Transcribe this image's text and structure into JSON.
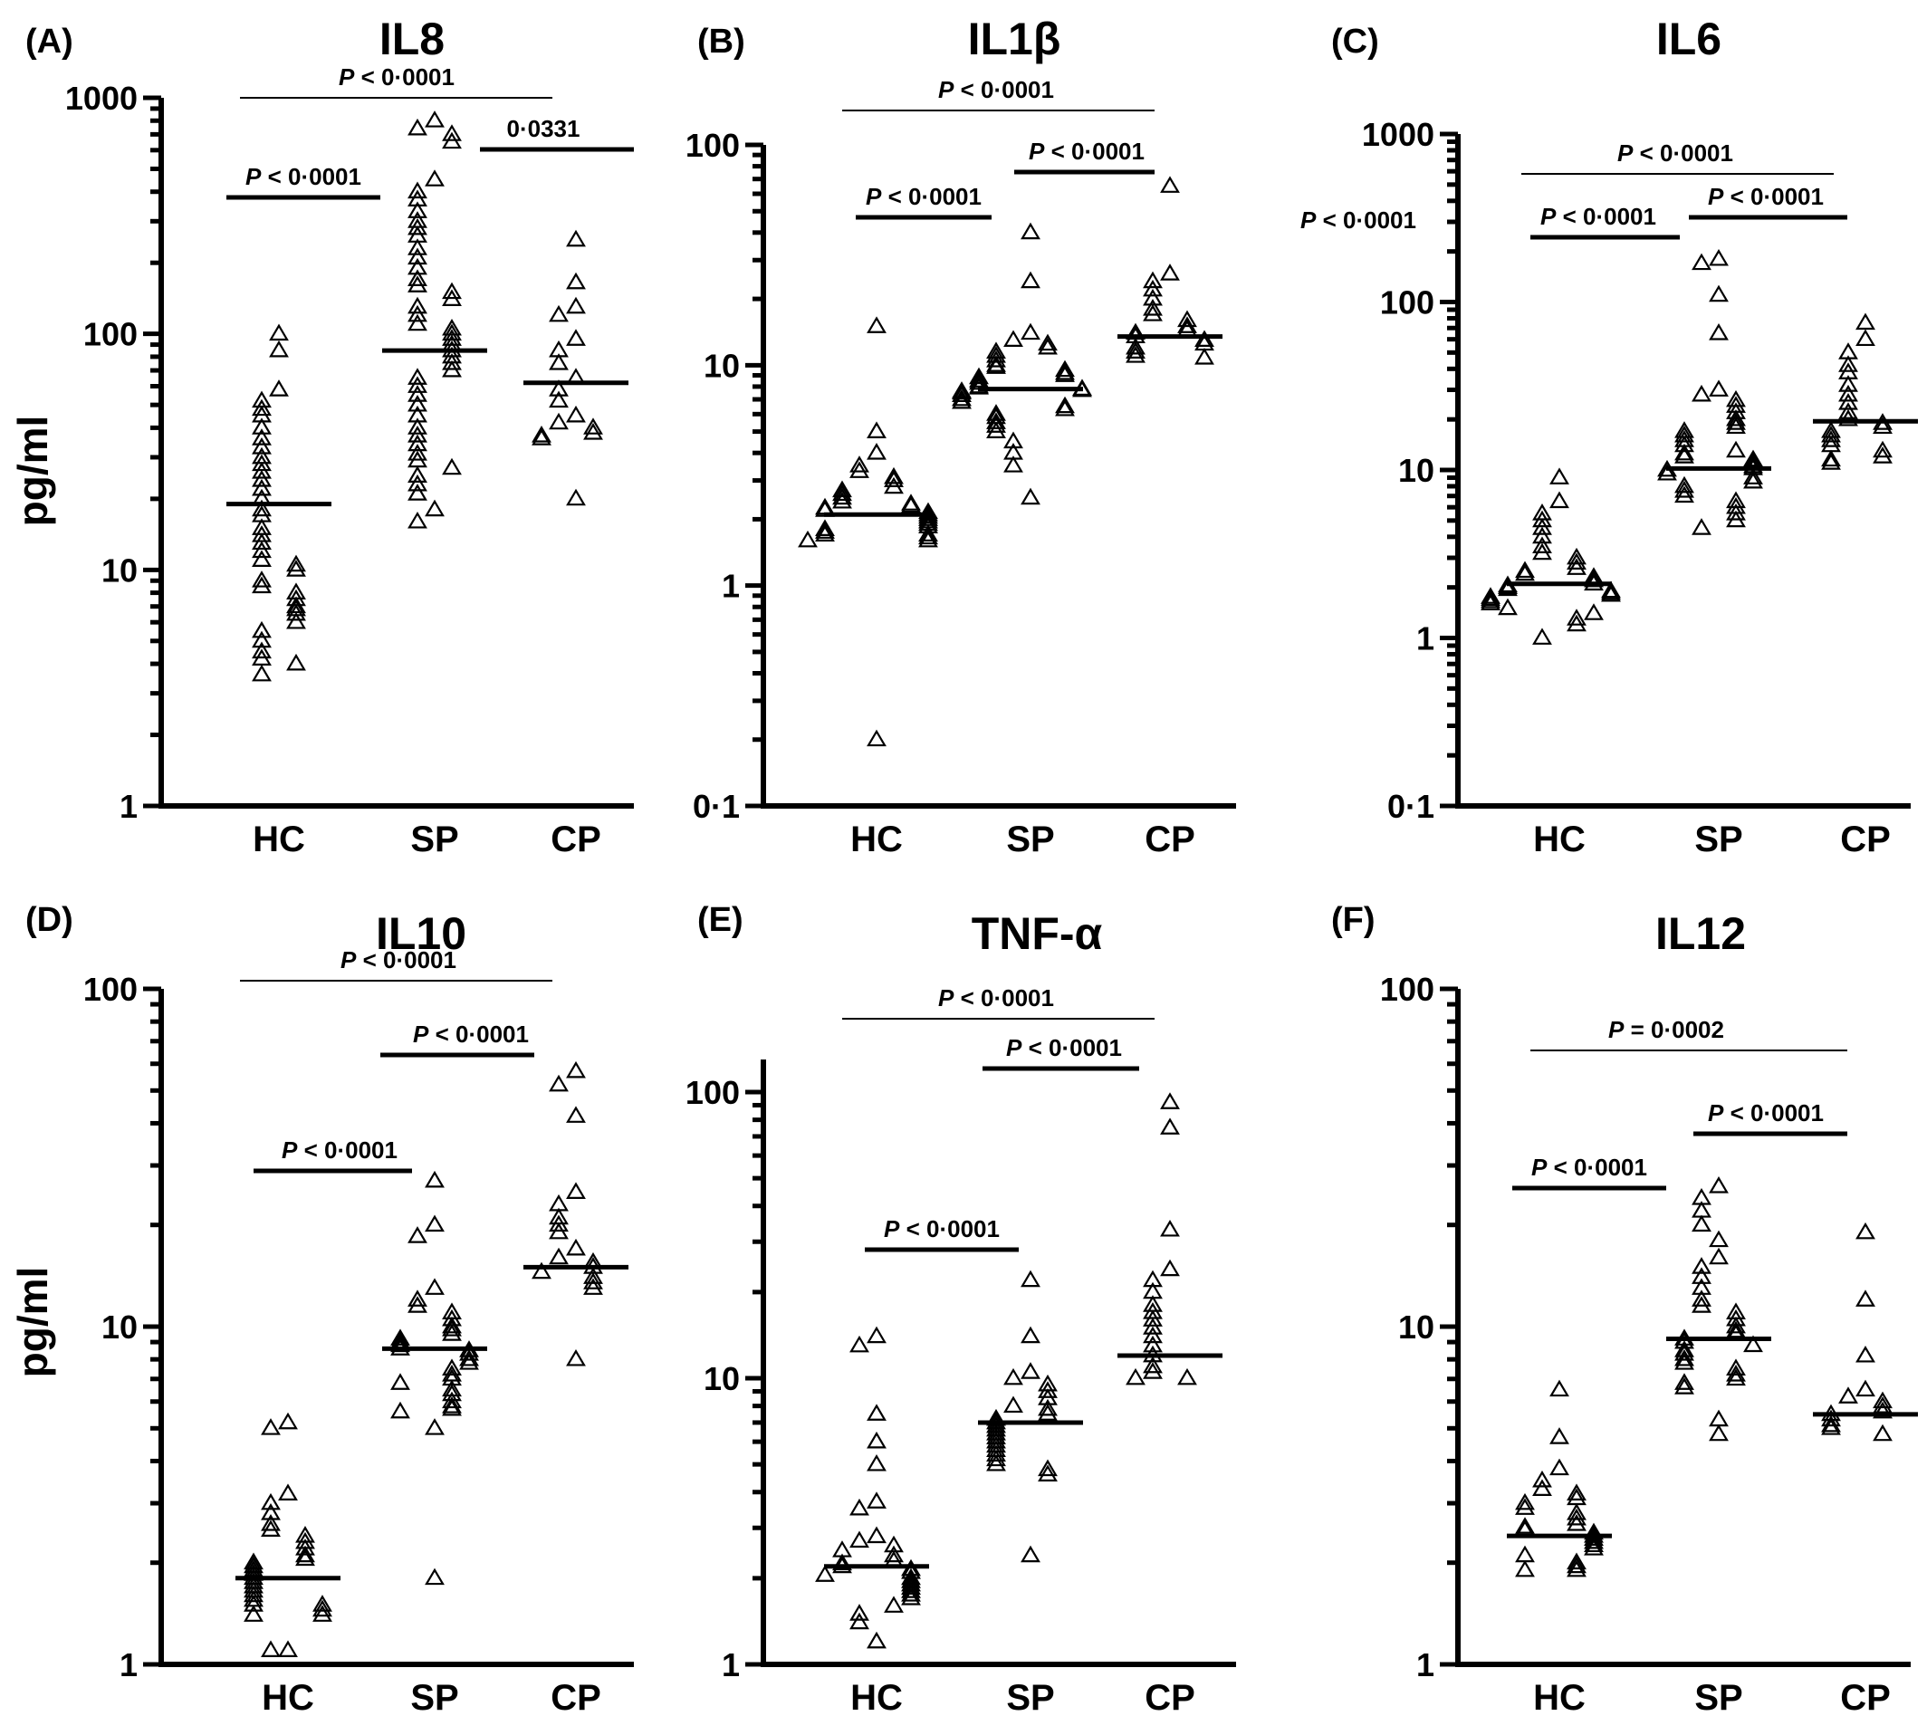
{
  "figure": {
    "ylabel": "pg/ml"
  },
  "chart_data": [
    {
      "type": "scatter",
      "letter": "(A)",
      "title": "IL8",
      "ylabel": "pg/ml",
      "scale": "log",
      "ylim": [
        1,
        1000
      ],
      "yticks": [
        1,
        10,
        100,
        1000
      ],
      "ytick_labels": [
        "1",
        "10",
        "100",
        "1000"
      ],
      "categories": [
        "HC",
        "SP",
        "CP"
      ],
      "medians": [
        19,
        85,
        62
      ],
      "series": [
        {
          "group": "HC",
          "values": [
            100,
            85,
            58,
            52,
            48,
            45,
            40,
            36,
            33,
            30,
            28,
            26,
            24,
            22,
            20,
            18,
            17,
            15,
            14,
            13,
            12,
            11,
            10.5,
            10,
            9,
            8.5,
            8,
            7.5,
            7,
            6.8,
            6.5,
            6,
            5.5,
            5,
            4.5,
            4.2,
            4,
            3.6
          ]
        },
        {
          "group": "SP",
          "values": [
            800,
            740,
            700,
            650,
            450,
            400,
            370,
            330,
            300,
            280,
            260,
            230,
            210,
            190,
            170,
            160,
            150,
            140,
            130,
            120,
            110,
            105,
            100,
            95,
            90,
            85,
            80,
            75,
            70,
            65,
            60,
            55,
            50,
            45,
            40,
            37,
            34,
            31,
            29,
            27,
            25,
            23,
            21,
            18,
            16
          ]
        },
        {
          "group": "CP",
          "values": [
            250,
            165,
            130,
            120,
            95,
            85,
            75,
            65,
            58,
            52,
            45,
            42,
            40,
            38,
            37,
            36,
            20
          ]
        }
      ],
      "comparisons": [
        {
          "from": "HC",
          "to": "CP",
          "label": "P < 0·0001",
          "italic_p": true,
          "level": 0,
          "weight": "thin"
        },
        {
          "from": "SP",
          "to": "CP_end",
          "label": "0·0331",
          "italic_p": false,
          "level": 1,
          "weight": "thick"
        },
        {
          "from": "HC",
          "to": "SP",
          "label": "P < 0·0001",
          "italic_p": true,
          "level": 2,
          "weight": "thick"
        }
      ]
    },
    {
      "type": "scatter",
      "letter": "(B)",
      "title": "IL1β",
      "ylabel": "",
      "scale": "log",
      "ylim": [
        0.1,
        100
      ],
      "yticks": [
        0.1,
        1,
        10,
        100
      ],
      "ytick_labels": [
        "0·1",
        "1",
        "10",
        "100"
      ],
      "categories": [
        "HC",
        "SP",
        "CP"
      ],
      "medians": [
        2.1,
        7.8,
        13.5
      ],
      "series": [
        {
          "group": "HC",
          "values": [
            15,
            5,
            4,
            3.5,
            3.3,
            3.1,
            3,
            2.8,
            2.7,
            2.6,
            2.5,
            2.4,
            2.35,
            2.3,
            2.25,
            2.2,
            2.15,
            2.1,
            2.05,
            2,
            1.95,
            1.9,
            1.85,
            1.8,
            1.75,
            1.7,
            1.7,
            1.65,
            1.6,
            1.6,
            0.2
          ]
        },
        {
          "group": "SP",
          "values": [
            40,
            24,
            14,
            13,
            12.5,
            12,
            11.5,
            11,
            10.5,
            10,
            9.8,
            9.5,
            9.2,
            9,
            8.8,
            8.5,
            8.3,
            8,
            7.9,
            7.8,
            7.7,
            7.6,
            7.5,
            7.3,
            7,
            6.8,
            6.5,
            6.3,
            6,
            5.8,
            5.5,
            5.3,
            5,
            4.5,
            4,
            3.5,
            2.5
          ]
        },
        {
          "group": "CP",
          "values": [
            65,
            26,
            24,
            22,
            20,
            18,
            17,
            16,
            15,
            14.5,
            14,
            13.5,
            13,
            12.5,
            12,
            11.5,
            11,
            10.8
          ]
        }
      ],
      "comparisons": [
        {
          "from": "HC",
          "to": "CP",
          "label": "P < 0·0001",
          "italic_p": true,
          "level": 0,
          "weight": "thin"
        },
        {
          "from": "SP",
          "to": "CP",
          "label": "P < 0·0001",
          "italic_p": true,
          "level": 1,
          "weight": "thick"
        },
        {
          "from": "HC",
          "to": "SP",
          "label": "P < 0·0001",
          "italic_p": true,
          "level": 2,
          "weight": "thick"
        }
      ]
    },
    {
      "type": "scatter",
      "letter": "(C)",
      "title": "IL6",
      "ylabel": "",
      "scale": "log",
      "ylim": [
        0.1,
        1000
      ],
      "yticks": [
        0.1,
        1,
        10,
        100,
        1000
      ],
      "ytick_labels": [
        "0·1",
        "1",
        "10",
        "100",
        "1000"
      ],
      "categories": [
        "HC",
        "SP",
        "CP"
      ],
      "medians": [
        2.1,
        10.2,
        19.5
      ],
      "series": [
        {
          "group": "HC",
          "values": [
            9,
            6.5,
            5.5,
            5,
            4.5,
            4,
            3.5,
            3.2,
            3,
            2.8,
            2.6,
            2.5,
            2.4,
            2.3,
            2.2,
            2.1,
            2.05,
            2,
            1.95,
            1.9,
            1.85,
            1.8,
            1.75,
            1.7,
            1.65,
            1.6,
            1.5,
            1.4,
            1.3,
            1.2,
            1
          ]
        },
        {
          "group": "SP",
          "values": [
            180,
            170,
            110,
            65,
            30,
            28,
            26,
            24,
            22,
            20,
            19,
            18,
            17,
            16,
            15,
            14,
            13,
            12.5,
            12,
            11.5,
            11,
            10.5,
            10.2,
            10,
            9.5,
            9,
            8.5,
            8,
            7.5,
            7,
            6.5,
            6,
            5.5,
            5,
            4.5
          ]
        },
        {
          "group": "CP",
          "values": [
            75,
            60,
            50,
            42,
            38,
            32,
            28,
            25,
            22,
            20,
            19,
            18,
            17,
            16,
            15,
            14,
            13,
            12,
            11.5,
            11
          ]
        }
      ],
      "extra_labels": [
        "P < 0·0001"
      ],
      "comparisons": [
        {
          "from": "HC",
          "to": "CP",
          "label": "P < 0·0001",
          "italic_p": true,
          "level": 0,
          "weight": "thin"
        },
        {
          "from": "SP",
          "to": "CP",
          "label": "P < 0·0001",
          "italic_p": true,
          "level": 1,
          "weight": "thick"
        },
        {
          "from": "HC",
          "to": "SP",
          "label": "P < 0·0001",
          "italic_p": true,
          "level": 2,
          "weight": "thick"
        }
      ]
    },
    {
      "type": "scatter",
      "letter": "(D)",
      "title": "IL10",
      "ylabel": "pg/ml",
      "scale": "log",
      "ylim": [
        1,
        100
      ],
      "yticks": [
        1,
        10,
        100
      ],
      "ytick_labels": [
        "1",
        "10",
        "100"
      ],
      "categories": [
        "HC",
        "SP",
        "CP"
      ],
      "medians": [
        1.8,
        8.6,
        15
      ],
      "series": [
        {
          "group": "HC",
          "values": [
            5.2,
            5,
            3.2,
            3,
            2.8,
            2.6,
            2.5,
            2.4,
            2.3,
            2.2,
            2.1,
            2.05,
            2,
            1.95,
            1.9,
            1.85,
            1.8,
            1.75,
            1.7,
            1.65,
            1.6,
            1.55,
            1.5,
            1.5,
            1.45,
            1.4,
            1.4,
            1.1,
            1.1
          ]
        },
        {
          "group": "SP",
          "values": [
            27,
            20,
            18.5,
            13,
            12,
            11.5,
            11,
            10.5,
            10,
            9.8,
            9.5,
            9.2,
            9,
            8.8,
            8.6,
            8.5,
            8.3,
            8,
            7.8,
            7.5,
            7.2,
            7,
            6.8,
            6.5,
            6.3,
            6,
            5.8,
            5.7,
            5.6,
            5,
            1.8
          ]
        },
        {
          "group": "CP",
          "values": [
            57,
            52,
            42,
            25,
            23,
            21,
            20,
            19,
            17,
            16,
            15.5,
            15,
            14.5,
            14,
            13.5,
            13,
            8
          ]
        }
      ],
      "comparisons": [
        {
          "from": "HC",
          "to": "CP",
          "label": "P < 0·0001",
          "italic_p": true,
          "level": 0,
          "weight": "thin"
        },
        {
          "from": "SP",
          "to": "CP",
          "label": "P < 0·0001",
          "italic_p": true,
          "level": 1,
          "weight": "thick"
        },
        {
          "from": "HC",
          "to": "SP",
          "label": "P < 0·0001",
          "italic_p": true,
          "level": 2,
          "weight": "thick"
        }
      ]
    },
    {
      "type": "scatter",
      "letter": "(E)",
      "title": "TNF-α",
      "ylabel": "",
      "scale": "log",
      "ylim": [
        1,
        130
      ],
      "yticks": [
        1,
        10,
        100
      ],
      "ytick_labels": [
        "1",
        "10",
        "100"
      ],
      "categories": [
        "HC",
        "SP",
        "CP"
      ],
      "medians": [
        2.2,
        7,
        12
      ],
      "series": [
        {
          "group": "HC",
          "values": [
            14,
            13,
            7.5,
            6,
            5,
            3.7,
            3.5,
            2.8,
            2.7,
            2.6,
            2.5,
            2.4,
            2.3,
            2.25,
            2.2,
            2.15,
            2.1,
            2.05,
            2,
            1.95,
            1.9,
            1.85,
            1.8,
            1.75,
            1.7,
            1.6,
            1.5,
            1.4,
            1.2
          ]
        },
        {
          "group": "SP",
          "values": [
            22,
            14,
            10.5,
            10,
            9.5,
            9,
            8.5,
            8,
            7.8,
            7.5,
            7.2,
            7,
            6.8,
            6.6,
            6.4,
            6.2,
            6,
            5.8,
            5.6,
            5.4,
            5.2,
            5,
            4.8,
            4.6,
            2.4
          ]
        },
        {
          "group": "CP",
          "values": [
            92,
            75,
            33,
            24,
            22,
            20,
            18,
            17,
            16,
            15,
            14,
            13,
            12,
            11,
            10.5,
            10,
            10
          ]
        }
      ],
      "comparisons": [
        {
          "from": "HC",
          "to": "CP",
          "label": "P < 0·0001",
          "italic_p": true,
          "level": 0,
          "weight": "thin"
        },
        {
          "from": "SP",
          "to": "CP",
          "label": "P < 0·0001",
          "italic_p": true,
          "level": 1,
          "weight": "thick"
        },
        {
          "from": "HC",
          "to": "SP",
          "label": "P < 0·0001",
          "italic_p": true,
          "level": 2,
          "weight": "thick"
        }
      ]
    },
    {
      "type": "scatter",
      "letter": "(F)",
      "title": "IL12",
      "ylabel": "",
      "scale": "log",
      "ylim": [
        1,
        100
      ],
      "yticks": [
        1,
        10,
        100
      ],
      "ytick_labels": [
        "1",
        "10",
        "100"
      ],
      "categories": [
        "HC",
        "SP",
        "CP"
      ],
      "medians": [
        2.4,
        9.2,
        5.5
      ],
      "series": [
        {
          "group": "HC",
          "values": [
            6.5,
            4.7,
            3.8,
            3.5,
            3.3,
            3.2,
            3.1,
            3,
            2.9,
            2.8,
            2.7,
            2.6,
            2.55,
            2.5,
            2.45,
            2.4,
            2.35,
            2.3,
            2.25,
            2.2,
            2.1,
            2,
            1.95,
            1.9,
            1.9
          ]
        },
        {
          "group": "SP",
          "values": [
            26,
            24,
            22,
            20,
            18,
            16,
            15,
            14,
            13,
            12,
            11.5,
            11,
            10.5,
            10,
            9.7,
            9.5,
            9.2,
            9,
            8.8,
            8.5,
            8.3,
            8,
            7.8,
            7.5,
            7.2,
            7,
            6.8,
            6.6,
            5.3,
            4.8
          ]
        },
        {
          "group": "CP",
          "values": [
            19,
            12,
            8.2,
            6.5,
            6.2,
            6,
            5.8,
            5.6,
            5.5,
            5.3,
            5.1,
            5,
            4.8
          ]
        }
      ],
      "comparisons": [
        {
          "from": "HC",
          "to": "CP",
          "label": "P = 0·0002",
          "italic_p": true,
          "level": 0,
          "weight": "thin"
        },
        {
          "from": "SP",
          "to": "CP",
          "label": "P < 0·0001",
          "italic_p": true,
          "level": 1,
          "weight": "thick"
        },
        {
          "from": "HC",
          "to": "SP",
          "label": "P < 0·0001",
          "italic_p": true,
          "level": 2,
          "weight": "thick"
        }
      ]
    }
  ]
}
